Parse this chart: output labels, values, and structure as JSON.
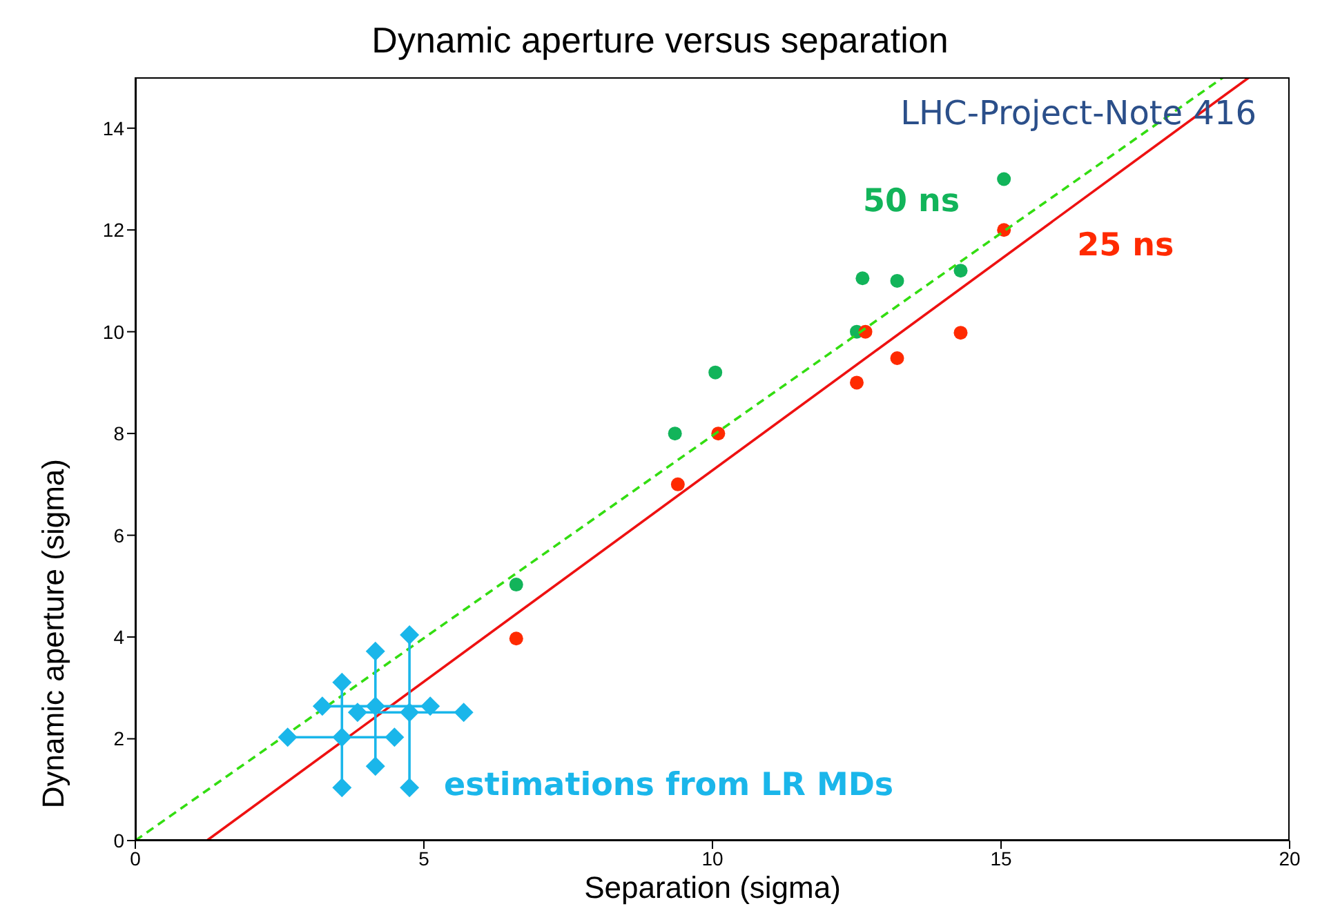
{
  "chart_data": {
    "type": "scatter",
    "title": "Dynamic aperture versus separation",
    "xlabel": "Separation (sigma)",
    "ylabel": "Dynamic aperture (sigma)",
    "xlim": [
      0,
      20
    ],
    "xticks": [
      0,
      5,
      10,
      15,
      20
    ],
    "ylim": [
      0,
      15
    ],
    "yticks": [
      0,
      2,
      4,
      6,
      8,
      10,
      12,
      14
    ],
    "grid": false,
    "annotations": [
      "LHC-Project-Note 416"
    ],
    "series": [
      {
        "name": "50 ns",
        "type": "scatter",
        "marker": "circle",
        "color": "#12b45a",
        "x": [
          6.6,
          9.35,
          10.05,
          12.5,
          12.6,
          13.2,
          14.3,
          15.05
        ],
        "values": [
          5.03,
          8.0,
          9.2,
          10.0,
          11.05,
          11.0,
          11.2,
          13.0
        ]
      },
      {
        "name": "25 ns",
        "type": "scatter",
        "marker": "circle",
        "color": "#ff2a00",
        "x": [
          6.6,
          9.4,
          10.1,
          12.5,
          12.65,
          13.2,
          14.3,
          15.05
        ],
        "values": [
          3.97,
          7.0,
          8.0,
          9.0,
          10.0,
          9.48,
          9.98,
          12.0
        ]
      },
      {
        "type": "line",
        "line_style": "dashed",
        "color": "#33dd11",
        "x": [
          0,
          18.85
        ],
        "values": [
          0,
          15
        ]
      },
      {
        "type": "line",
        "line_style": "solid",
        "color": "#ee1111",
        "x": [
          1.24,
          19.3
        ],
        "values": [
          0,
          15
        ]
      },
      {
        "type": "line",
        "line_style": "solid",
        "color": "#1ab6ea",
        "x": [
          2.64,
          4.49
        ],
        "values": [
          2.03,
          2.03
        ]
      },
      {
        "type": "line",
        "line_style": "solid",
        "color": "#1ab6ea",
        "x": [
          3.58,
          3.58
        ],
        "values": [
          1.04,
          3.11
        ]
      },
      {
        "type": "line",
        "line_style": "solid",
        "color": "#1ab6ea",
        "x": [
          3.24,
          5.11
        ],
        "values": [
          2.64,
          2.64
        ]
      },
      {
        "type": "line",
        "line_style": "solid",
        "color": "#1ab6ea",
        "x": [
          4.16,
          4.16
        ],
        "values": [
          1.46,
          3.72
        ]
      },
      {
        "type": "line",
        "line_style": "solid",
        "color": "#1ab6ea",
        "x": [
          3.85,
          5.69
        ],
        "values": [
          2.52,
          2.52
        ]
      },
      {
        "type": "line",
        "line_style": "solid",
        "color": "#1ab6ea",
        "x": [
          4.75,
          4.75
        ],
        "values": [
          1.04,
          4.04
        ]
      },
      {
        "name": "estimations from LR MDs",
        "type": "scatter",
        "marker": "diamond",
        "color": "#1ab6ea",
        "x": [
          3.58,
          2.64,
          4.49,
          3.58,
          3.58,
          4.16,
          3.24,
          5.11,
          4.16,
          4.16,
          3.85,
          5.69,
          4.75,
          4.75,
          4.75
        ],
        "values": [
          2.03,
          2.03,
          2.03,
          3.11,
          1.04,
          2.64,
          2.64,
          2.64,
          3.72,
          1.46,
          2.52,
          2.52,
          4.04,
          1.04,
          2.52
        ]
      }
    ]
  }
}
